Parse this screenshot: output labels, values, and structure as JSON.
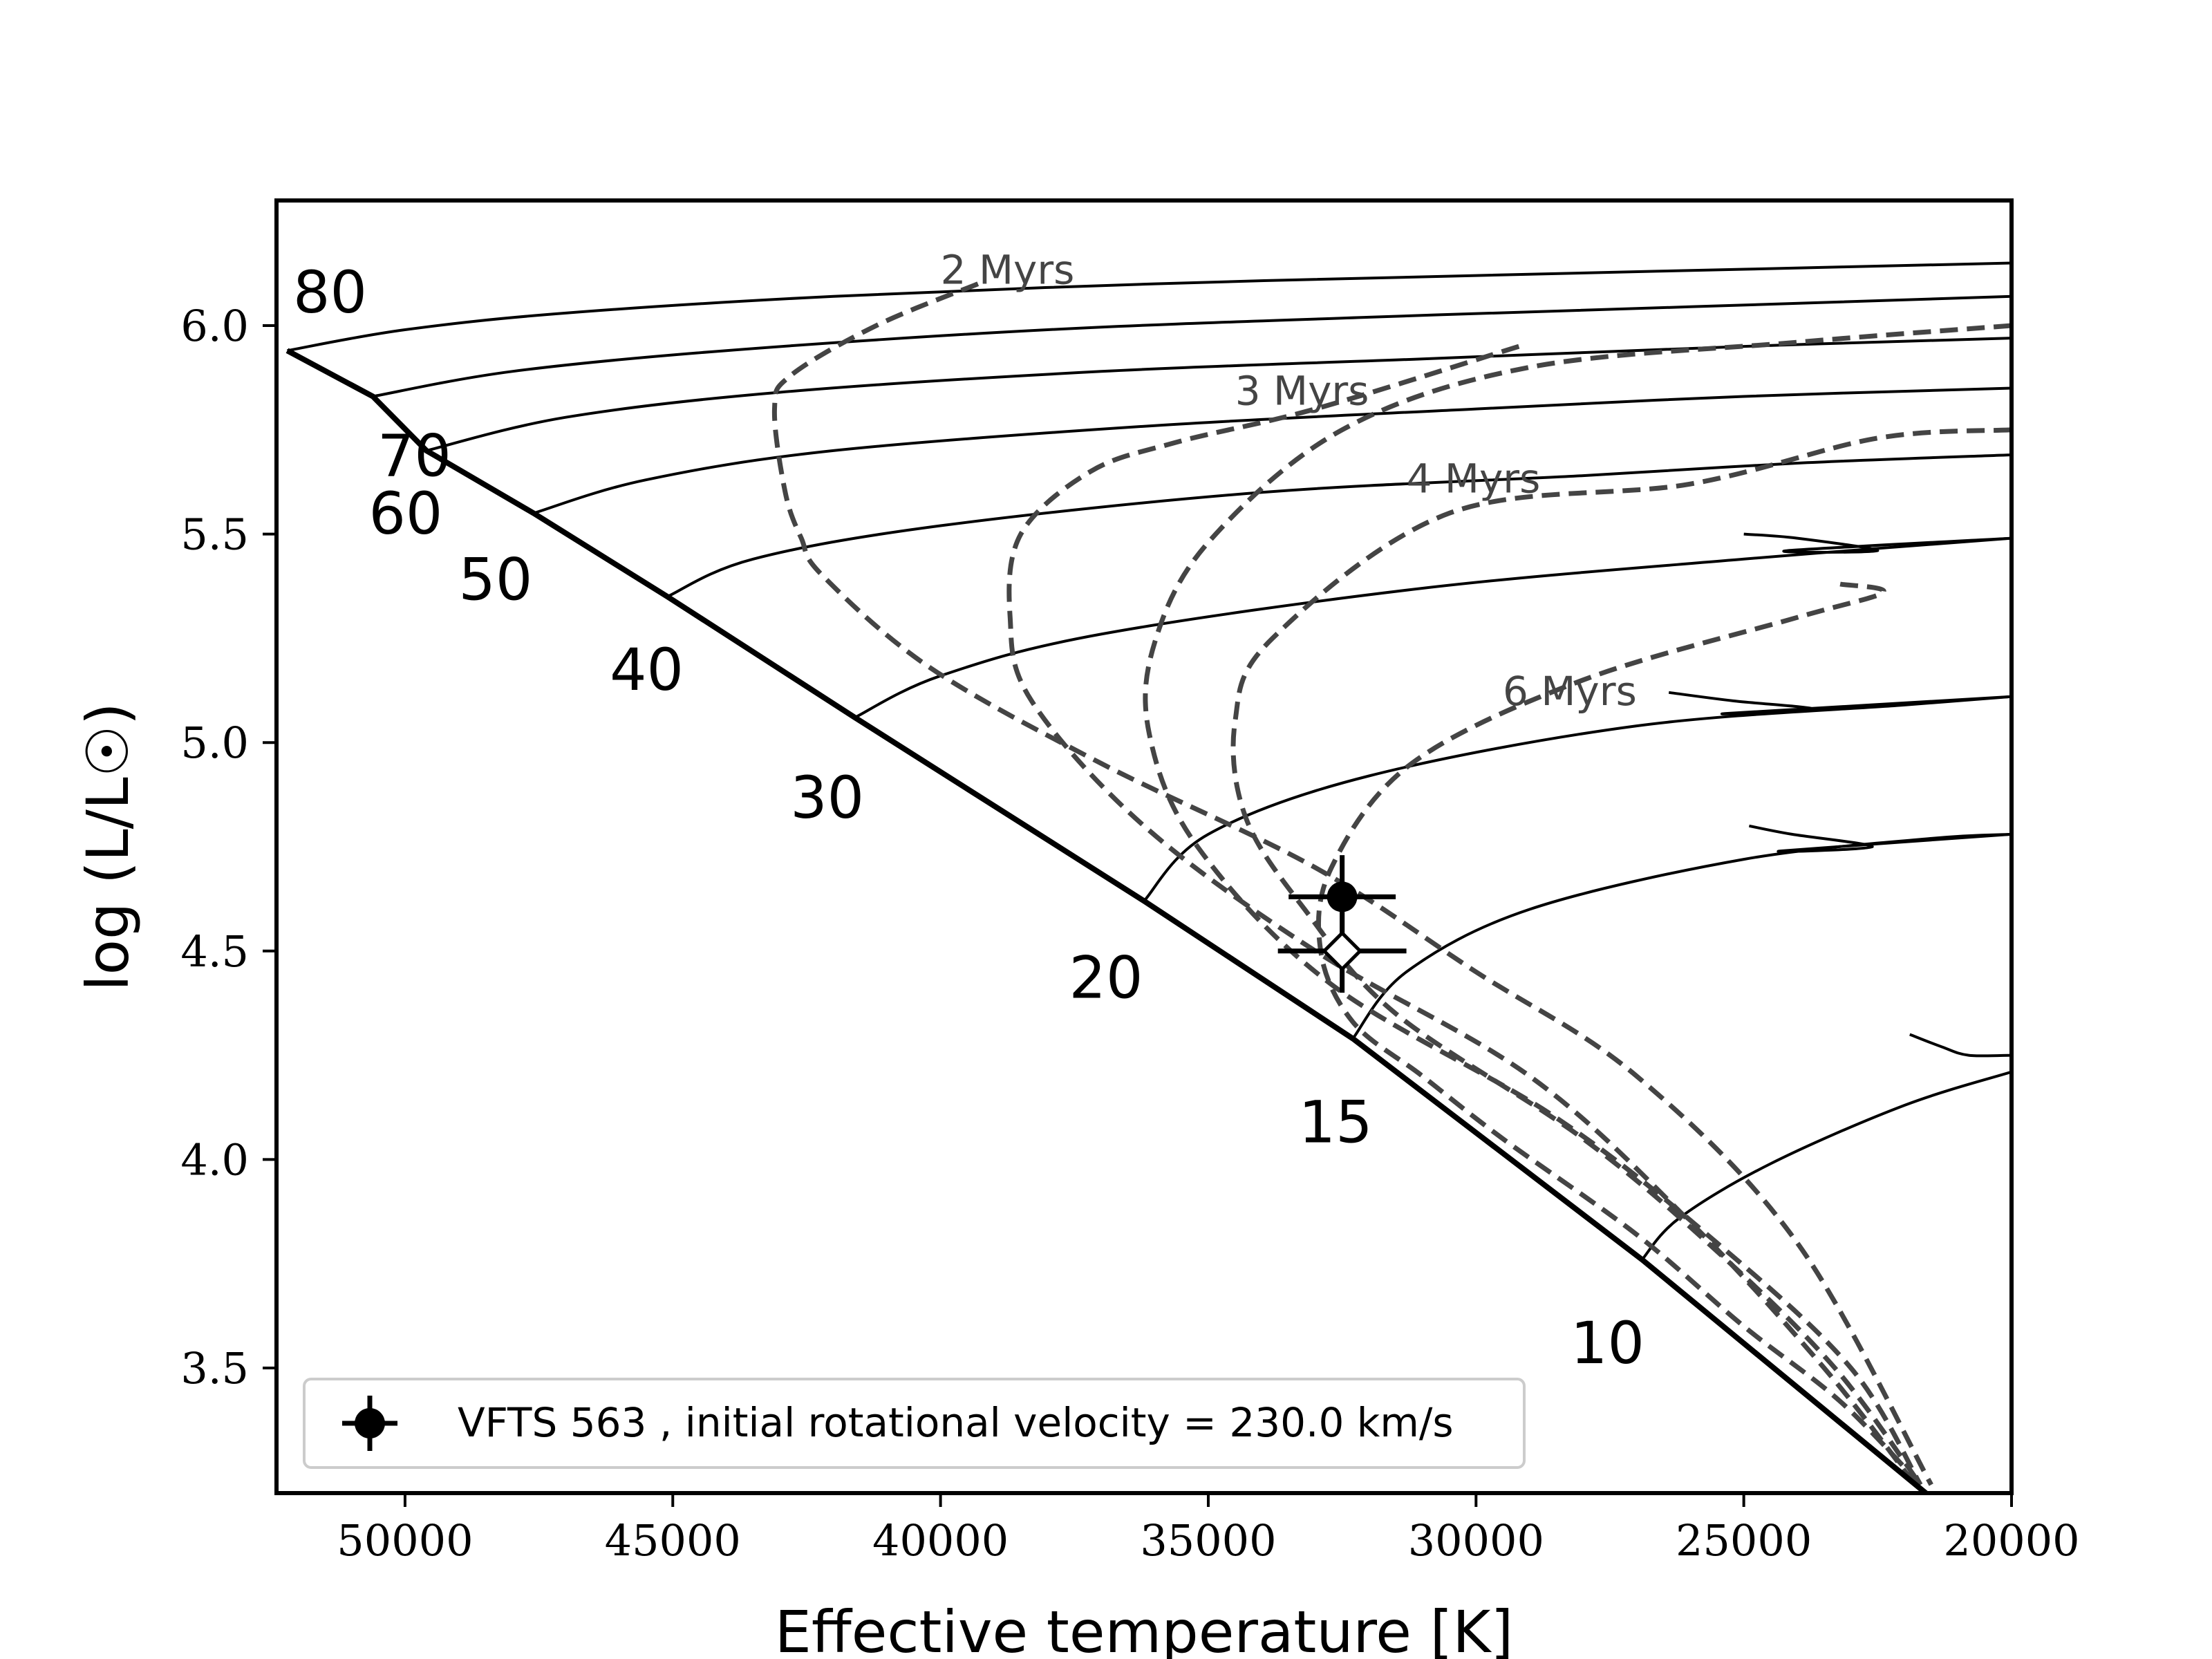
{
  "chart_data": {
    "type": "line",
    "xlabel": "Effective temperature [K]",
    "ylabel": "log (L/L☉)",
    "xlim": [
      52400,
      20000
    ],
    "ylim": [
      3.2,
      6.3
    ],
    "x_reversed": true,
    "grid": false,
    "legend_placement": "lower-left",
    "xticks": [
      50000,
      45000,
      40000,
      35000,
      30000,
      25000,
      20000
    ],
    "xtick_labels": [
      "50000",
      "45000",
      "40000",
      "35000",
      "30000",
      "25000",
      "20000"
    ],
    "yticks": [
      3.5,
      4.0,
      4.5,
      5.0,
      5.5,
      6.0
    ],
    "ytick_labels": [
      "3.5",
      "4.0",
      "4.5",
      "5.0",
      "5.5",
      "6.0"
    ],
    "zams": {
      "x": [
        52200,
        50600,
        49600,
        47600,
        45100,
        41600,
        36200,
        32300,
        26900,
        21600
      ],
      "y": [
        5.94,
        5.83,
        5.7,
        5.55,
        5.35,
        5.06,
        4.62,
        4.29,
        3.76,
        3.2
      ]
    },
    "tracks": [
      {
        "mass": "80",
        "x": [
          52200,
          50000,
          47000,
          42000,
          36000,
          30000,
          25000,
          20000
        ],
        "y": [
          5.94,
          5.99,
          6.03,
          6.07,
          6.1,
          6.12,
          6.135,
          6.15
        ]
      },
      {
        "mass": "70",
        "x": [
          50600,
          48000,
          44000,
          38000,
          32000,
          26000,
          20000
        ],
        "y": [
          5.83,
          5.89,
          5.94,
          5.99,
          6.02,
          6.045,
          6.07
        ]
      },
      {
        "mass": "60",
        "x": [
          49600,
          47000,
          43000,
          37000,
          31000,
          25000,
          20000
        ],
        "y": [
          5.7,
          5.78,
          5.84,
          5.89,
          5.92,
          5.95,
          5.97
        ]
      },
      {
        "mass": "50",
        "x": [
          47600,
          45500,
          42000,
          36000,
          30000,
          25000,
          20000
        ],
        "y": [
          5.55,
          5.63,
          5.7,
          5.76,
          5.8,
          5.83,
          5.85
        ]
      },
      {
        "mass": "40",
        "x": [
          45100,
          43500,
          40000,
          34000,
          28000,
          24000,
          20000
        ],
        "y": [
          5.35,
          5.44,
          5.52,
          5.6,
          5.64,
          5.67,
          5.69
        ]
      },
      {
        "mass": "30",
        "x": [
          41600,
          40000,
          37000,
          31000,
          25000,
          20000
        ],
        "y": [
          5.06,
          5.16,
          5.26,
          5.37,
          5.44,
          5.49
        ]
      },
      {
        "mass": "20",
        "x": [
          36200,
          35000,
          32000,
          27000,
          22000,
          20000
        ],
        "y": [
          4.62,
          4.78,
          4.92,
          5.04,
          5.09,
          5.11
        ]
      },
      {
        "mass": "15",
        "x": [
          32300,
          31300,
          29000,
          25000,
          21500,
          20000
        ],
        "y": [
          4.29,
          4.45,
          4.6,
          4.72,
          4.77,
          4.78
        ]
      },
      {
        "mass": "10",
        "x": [
          26900,
          26200,
          24500,
          22000,
          20000
        ],
        "y": [
          3.76,
          3.86,
          3.99,
          4.13,
          4.21
        ]
      }
    ],
    "isochrones": [
      {
        "label": "2 Myrs",
        "x": [
          39300,
          41200,
          42800,
          43100,
          42900,
          42600,
          42200,
          40200,
          37000,
          33000,
          30000,
          27000,
          24000,
          21500
        ],
        "y": [
          6.1,
          6.0,
          5.88,
          5.8,
          5.6,
          5.49,
          5.4,
          5.18,
          4.95,
          4.7,
          4.45,
          4.2,
          3.8,
          3.22
        ]
      },
      {
        "label": "3 Myrs",
        "x": [
          29200,
          33000,
          35600,
          37200,
          38500,
          38700,
          38300,
          36200,
          33000,
          29000,
          26000,
          23500,
          21800
        ],
        "y": [
          5.95,
          5.8,
          5.72,
          5.65,
          5.5,
          5.3,
          5.1,
          4.8,
          4.5,
          4.2,
          3.85,
          3.5,
          3.22
        ]
      },
      {
        "label": "4 Myrs",
        "x": [
          20000,
          24000,
          29000,
          32500,
          35000,
          36000,
          36100,
          35200,
          32700,
          28500,
          25500,
          23000,
          21700
        ],
        "y": [
          6.0,
          5.96,
          5.9,
          5.75,
          5.48,
          5.24,
          5.02,
          4.75,
          4.42,
          4.1,
          3.8,
          3.5,
          3.22
        ]
      },
      {
        "label": "",
        "x": [
          20000,
          22500,
          26000,
          30500,
          33800,
          34500,
          34300,
          33200,
          31500,
          28000,
          25500,
          23300,
          21700
        ],
        "y": [
          5.75,
          5.73,
          5.62,
          5.55,
          5.25,
          5.05,
          4.82,
          4.6,
          4.35,
          4.05,
          3.78,
          3.5,
          3.22
        ]
      },
      {
        "label": "6 Myrs",
        "x": [
          23200,
          22400,
          24000,
          28000,
          31200,
          32700,
          32900,
          32300,
          31000,
          29500,
          27000,
          25000,
          23200,
          21700
        ],
        "y": [
          5.38,
          5.36,
          5.3,
          5.15,
          4.95,
          4.7,
          4.5,
          4.33,
          4.2,
          4.05,
          3.82,
          3.6,
          3.42,
          3.22
        ]
      }
    ],
    "hooks": [
      {
        "x": [
          25000,
          24000,
          22500,
          24200,
          20000
        ],
        "y": [
          5.5,
          5.49,
          5.46,
          5.46,
          5.49
        ]
      },
      {
        "x": [
          26400,
          25200,
          23700,
          25300,
          20000
        ],
        "y": [
          5.12,
          5.1,
          5.08,
          5.07,
          5.11
        ]
      },
      {
        "x": [
          24900,
          24100,
          22600,
          24300,
          20000
        ],
        "y": [
          4.8,
          4.78,
          4.75,
          4.74,
          4.78
        ]
      },
      {
        "x": [
          21900,
          21300,
          20800,
          20000
        ],
        "y": [
          4.3,
          4.27,
          4.25,
          4.25
        ]
      }
    ],
    "observed": {
      "x": 32500,
      "y": 4.63,
      "x_err": 1000,
      "y_err": 0.1
    },
    "observed_alt": {
      "x": 32500,
      "y": 4.5,
      "x_err": 1200,
      "y_err": 0.1
    },
    "legend_label": "VFTS 563 , initial rotational velocity = 230.0 km/s"
  }
}
